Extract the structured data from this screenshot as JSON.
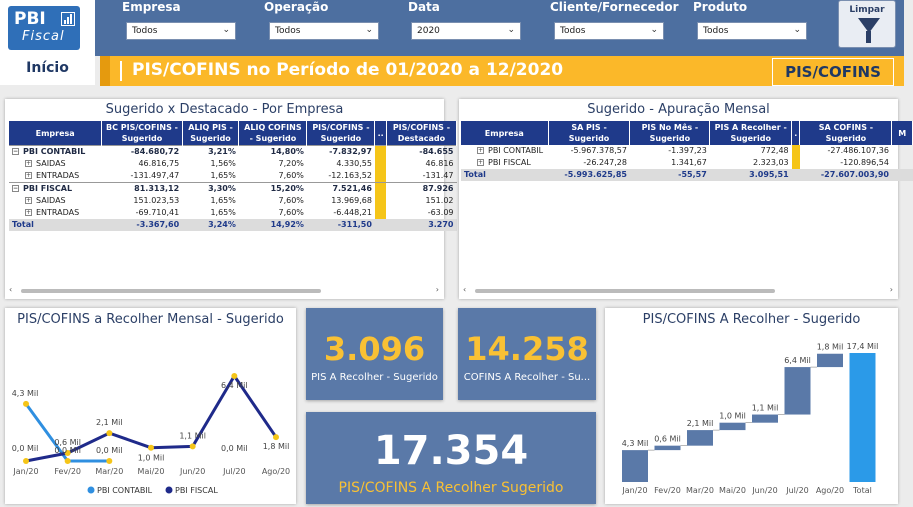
{
  "app": {
    "logo_line1": "PBI",
    "logo_line2": "Fiscal",
    "home_label": "Início"
  },
  "filters": [
    {
      "label": "Empresa",
      "value": "Todos"
    },
    {
      "label": "Operação",
      "value": "Todos"
    },
    {
      "label": "Data",
      "value": "2020"
    },
    {
      "label": "Cliente/Fornecedor",
      "value": "Todos"
    },
    {
      "label": "Produto",
      "value": "Todos"
    }
  ],
  "clear_button": {
    "label": "Limpar",
    "icon": "funnel-icon"
  },
  "title": {
    "text": "PIS/COFINS no Período de 01/2020 a 12/2020",
    "tag": "PIS/COFINS"
  },
  "colors": {
    "header_blue": "#4d6fa0",
    "accent_yellow": "#fbb829",
    "table_header": "#1f3a8a",
    "kpi_blue": "#5a79a8",
    "kpi_value": "#f9c134"
  },
  "matrix_empresa": {
    "title": "Sugerido x Destacado - Por Empresa",
    "columns": [
      "Empresa",
      "BC PIS/COFINS - Sugerido",
      "ALIQ PIS - Sugerido",
      "ALIQ COFINS - Sugerido",
      "PIS/COFINS - Sugerido",
      "..",
      "PIS/COFINS - Destacado"
    ],
    "rows": [
      {
        "kind": "top",
        "expand": "−",
        "cells": [
          "PBI CONTABIL",
          "-84.680,72",
          "3,21%",
          "14,80%",
          "-7.832,97",
          "-84.655"
        ]
      },
      {
        "kind": "sub",
        "expand": "+",
        "cells": [
          "SAIDAS",
          "46.816,75",
          "1,56%",
          "7,20%",
          "4.330,55",
          "46.816"
        ]
      },
      {
        "kind": "sub",
        "expand": "+",
        "cells": [
          "ENTRADAS",
          "-131.497,47",
          "1,65%",
          "7,60%",
          "-12.163,52",
          "-131.47"
        ]
      },
      {
        "kind": "top",
        "expand": "−",
        "cells": [
          "PBI FISCAL",
          "81.313,12",
          "3,30%",
          "15,20%",
          "7.521,46",
          "87.926"
        ]
      },
      {
        "kind": "sub",
        "expand": "+",
        "cells": [
          "SAIDAS",
          "151.023,53",
          "1,65%",
          "7,60%",
          "13.969,68",
          "151.02"
        ]
      },
      {
        "kind": "sub",
        "expand": "+",
        "cells": [
          "ENTRADAS",
          "-69.710,41",
          "1,65%",
          "7,60%",
          "-6.448,21",
          "-63.09"
        ]
      },
      {
        "kind": "tot",
        "expand": "",
        "cells": [
          "Total",
          "-3.367,60",
          "3,24%",
          "14,92%",
          "-311,50",
          "3.270"
        ]
      }
    ]
  },
  "matrix_mensal": {
    "title": "Sugerido - Apuração Mensal",
    "columns": [
      "Empresa",
      "SA PIS - Sugerido",
      "PIS No Mês - Sugerido",
      "PIS A Recolher - Sugerido",
      ".",
      "SA COFINS - Sugerido",
      "M"
    ],
    "rows": [
      {
        "kind": "sub",
        "expand": "+",
        "cells": [
          "PBI CONTABIL",
          "-5.967.378,57",
          "-1.397,23",
          "772,48",
          "-27.486.107,36"
        ]
      },
      {
        "kind": "sub",
        "expand": "+",
        "cells": [
          "PBI FISCAL",
          "-26.247,28",
          "1.341,67",
          "2.323,03",
          "-120.896,54"
        ]
      },
      {
        "kind": "tot",
        "expand": "",
        "cells": [
          "Total",
          "-5.993.625,85",
          "-55,57",
          "3.095,51",
          "-27.607.003,90"
        ]
      }
    ]
  },
  "kpis": {
    "pis": {
      "value": "3.096",
      "caption": "PIS A Recolher - Sugerido"
    },
    "cofins": {
      "value": "14.258",
      "caption": "COFINS A Recolher - Su..."
    },
    "total": {
      "value": "17.354",
      "caption": "PIS/COFINS A Recolher Sugerido"
    }
  },
  "chart_data": [
    {
      "type": "line",
      "title": "PIS/COFINS a Recolher Mensal - Sugerido",
      "categories": [
        "Jan/20",
        "Fev/20",
        "Mar/20",
        "Mai/20",
        "Jun/20",
        "Jul/20",
        "Ago/20"
      ],
      "series": [
        {
          "name": "PBI CONTABIL",
          "color": "#2f8fe0",
          "values": [
            4.3,
            0.0,
            0.0,
            null,
            null,
            null,
            null
          ],
          "labels": [
            "4,3 Mil",
            "0,0 Mil",
            "0,0 Mil",
            "",
            "",
            "",
            ""
          ]
        },
        {
          "name": "PBI FISCAL",
          "color": "#1f2a8a",
          "values": [
            0.0,
            0.6,
            2.1,
            1.0,
            1.1,
            6.4,
            1.8
          ],
          "labels": [
            "0,0 Mil",
            "0,6 Mil",
            "2,1 Mil",
            "1,0 Mil",
            "1,1 Mil",
            "6,4 Mil",
            "1,8 Mil"
          ]
        }
      ],
      "extra_label": "0,0 Mil",
      "legend": "bottom",
      "ylim": [
        0,
        7
      ]
    },
    {
      "type": "bar",
      "subtype": "waterfall",
      "title": "PIS/COFINS A Recolher - Sugerido",
      "categories": [
        "Jan/20",
        "Fev/20",
        "Mar/20",
        "Mai/20",
        "Jun/20",
        "Jul/20",
        "Ago/20",
        "Total"
      ],
      "values": [
        4.3,
        0.6,
        2.1,
        1.0,
        1.1,
        6.4,
        1.8,
        17.4
      ],
      "labels": [
        "4,3 Mil",
        "0,6 Mil",
        "2,1 Mil",
        "1,0 Mil",
        "1,1 Mil",
        "6,4 Mil",
        "1,8 Mil",
        "17,4 Mil"
      ],
      "colors": {
        "step": "#5a79a8",
        "total": "#2b9ae8"
      },
      "ylim": [
        0,
        17.4
      ]
    }
  ]
}
